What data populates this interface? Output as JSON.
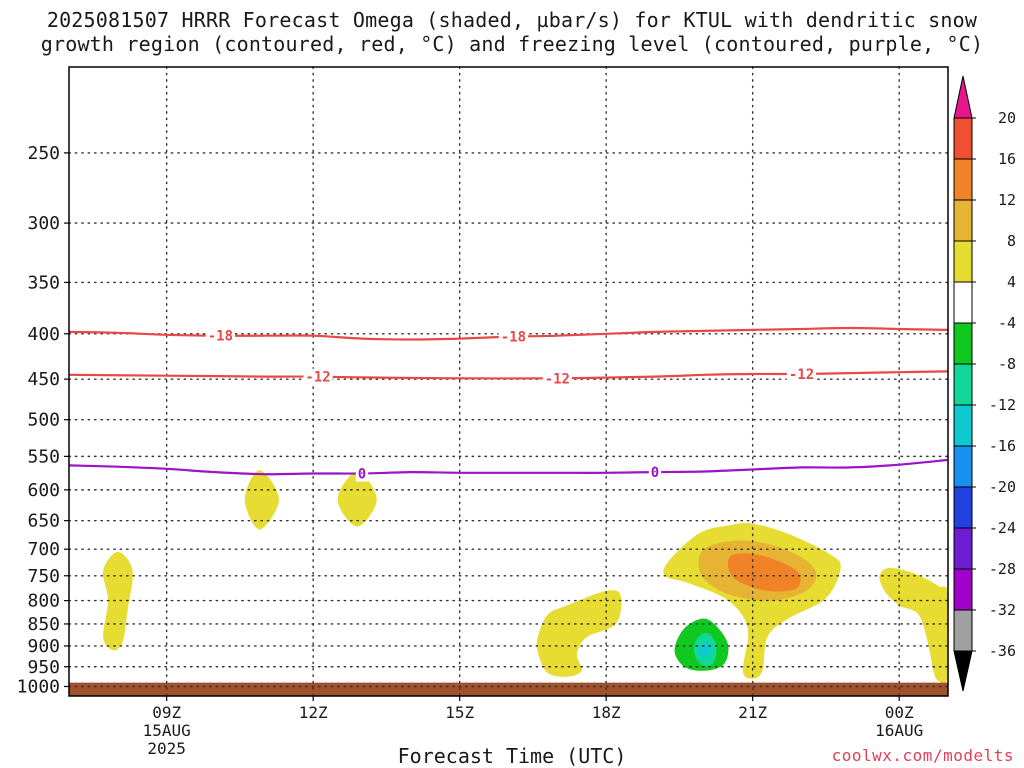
{
  "title_line1": "2025081507 HRRR Forecast Omega (shaded, µbar/s) for KTUL with dendritic snow",
  "title_line2": "growth region (contoured, red, °C) and freezing level (contoured, purple, °C)",
  "credit": "coolwx.com/modelts",
  "chart_data": {
    "type": "contour",
    "xlabel": "Forecast Time (UTC)",
    "ylabel": "",
    "x_range_hours": [
      7,
      25
    ],
    "y_range_hpa": [
      1025,
      200
    ],
    "y_scale": "log-pressure",
    "grid": "dotted",
    "x_ticks": [
      {
        "hour": 9,
        "lines": [
          "09Z",
          "15AUG",
          "2025"
        ]
      },
      {
        "hour": 12,
        "lines": [
          "12Z"
        ]
      },
      {
        "hour": 15,
        "lines": [
          "15Z"
        ]
      },
      {
        "hour": 18,
        "lines": [
          "18Z"
        ]
      },
      {
        "hour": 21,
        "lines": [
          "21Z"
        ]
      },
      {
        "hour": 24,
        "lines": [
          "00Z",
          "16AUG"
        ]
      }
    ],
    "y_ticks": [
      250,
      300,
      350,
      400,
      450,
      500,
      550,
      600,
      650,
      700,
      750,
      800,
      850,
      900,
      950,
      1000
    ],
    "colorbar": {
      "bins": [
        {
          "color": "#a0a0a0",
          "lo": -36,
          "hi": -32
        },
        {
          "color": "#a000c8",
          "lo": -32,
          "hi": -28
        },
        {
          "color": "#6e1ed2",
          "lo": -28,
          "hi": -24
        },
        {
          "color": "#2040e0",
          "lo": -24,
          "hi": -20
        },
        {
          "color": "#1890f0",
          "lo": -20,
          "hi": -16
        },
        {
          "color": "#10c8d0",
          "lo": -16,
          "hi": -12
        },
        {
          "color": "#10d898",
          "lo": -12,
          "hi": -8
        },
        {
          "color": "#10c820",
          "lo": -8,
          "hi": -4
        },
        {
          "color": "#ffffff",
          "lo": -4,
          "hi": 4
        },
        {
          "color": "#e6dc32",
          "lo": 4,
          "hi": 8
        },
        {
          "color": "#e6b432",
          "lo": 8,
          "hi": 12
        },
        {
          "color": "#f08228",
          "lo": 12,
          "hi": 16
        },
        {
          "color": "#f05032",
          "lo": 16,
          "hi": 20
        }
      ],
      "labels": [
        20,
        16,
        12,
        8,
        4,
        -4,
        -8,
        -12,
        -16,
        -20,
        -24,
        -28,
        -32,
        -36
      ],
      "top_arrow_color": "#e6168c",
      "bottom_arrow_color": "#000000"
    },
    "terrain": {
      "color": "#a0522d",
      "surface_hpa": 990
    },
    "contours": [
      {
        "name": "-18",
        "color": "#e84848",
        "labels": [
          {
            "x": 10.1,
            "text": "-18"
          },
          {
            "x": 16.1,
            "text": "-18"
          }
        ],
        "points": [
          [
            7,
            398
          ],
          [
            8,
            399
          ],
          [
            9,
            401
          ],
          [
            10,
            402
          ],
          [
            11,
            402
          ],
          [
            12,
            402
          ],
          [
            13,
            405
          ],
          [
            14,
            406
          ],
          [
            15,
            405
          ],
          [
            16,
            403
          ],
          [
            17,
            402
          ],
          [
            18,
            400
          ],
          [
            19,
            398
          ],
          [
            20,
            397
          ],
          [
            21,
            396
          ],
          [
            22,
            395
          ],
          [
            23,
            394
          ],
          [
            24,
            395
          ],
          [
            25,
            396
          ]
        ]
      },
      {
        "name": "-12",
        "color": "#e84848",
        "labels": [
          {
            "x": 12.1,
            "text": "-12"
          },
          {
            "x": 17.0,
            "text": "-12"
          },
          {
            "x": 22.0,
            "text": "-12"
          }
        ],
        "points": [
          [
            7,
            445
          ],
          [
            9,
            446
          ],
          [
            11,
            447
          ],
          [
            12,
            447
          ],
          [
            13,
            448
          ],
          [
            15,
            449
          ],
          [
            17,
            449
          ],
          [
            19,
            447
          ],
          [
            20,
            445
          ],
          [
            21,
            444
          ],
          [
            22,
            444
          ],
          [
            23,
            443
          ],
          [
            24,
            442
          ],
          [
            25,
            441
          ]
        ]
      },
      {
        "name": "0",
        "color": "#9a14c8",
        "labels": [
          {
            "x": 13.0,
            "text": "0"
          },
          {
            "x": 19.0,
            "text": "0"
          }
        ],
        "points": [
          [
            7,
            563
          ],
          [
            8,
            565
          ],
          [
            9,
            568
          ],
          [
            10,
            573
          ],
          [
            11,
            576
          ],
          [
            12,
            575
          ],
          [
            13,
            575
          ],
          [
            14,
            573
          ],
          [
            15,
            574
          ],
          [
            16,
            574
          ],
          [
            17,
            574
          ],
          [
            18,
            574
          ],
          [
            19,
            573
          ],
          [
            20,
            572
          ],
          [
            21,
            569
          ],
          [
            22,
            566
          ],
          [
            23,
            566
          ],
          [
            24,
            562
          ],
          [
            25,
            555
          ]
        ]
      }
    ],
    "shaded_regions": [
      {
        "color": "#e6dc32",
        "value_range": [
          4,
          8
        ],
        "points": [
          [
            8.0,
            705
          ],
          [
            8.3,
            740
          ],
          [
            8.2,
            820
          ],
          [
            8.1,
            890
          ],
          [
            7.9,
            910
          ],
          [
            7.7,
            880
          ],
          [
            7.8,
            800
          ],
          [
            7.7,
            740
          ]
        ]
      },
      {
        "color": "#e6dc32",
        "value_range": [
          4,
          8
        ],
        "points": [
          [
            10.9,
            570
          ],
          [
            11.3,
            615
          ],
          [
            10.9,
            665
          ],
          [
            10.6,
            615
          ]
        ]
      },
      {
        "color": "#e6dc32",
        "value_range": [
          4,
          8
        ],
        "points": [
          [
            12.9,
            572
          ],
          [
            13.3,
            615
          ],
          [
            12.9,
            660
          ],
          [
            12.5,
            615
          ]
        ]
      },
      {
        "color": "#e6dc32",
        "value_range": [
          4,
          8
        ],
        "points": [
          [
            18.0,
            780
          ],
          [
            18.3,
            790
          ],
          [
            18.2,
            850
          ],
          [
            17.6,
            880
          ],
          [
            17.4,
            920
          ],
          [
            17.5,
            960
          ],
          [
            17.2,
            975
          ],
          [
            16.8,
            965
          ],
          [
            16.6,
            915
          ],
          [
            16.6,
            880
          ],
          [
            16.8,
            830
          ],
          [
            17.2,
            810
          ]
        ]
      },
      {
        "color": "#e6dc32",
        "value_range": [
          4,
          8
        ],
        "points": [
          [
            21.0,
            655
          ],
          [
            21.8,
            675
          ],
          [
            22.6,
            710
          ],
          [
            22.8,
            735
          ],
          [
            22.5,
            795
          ],
          [
            21.7,
            840
          ],
          [
            21.3,
            880
          ],
          [
            21.2,
            960
          ],
          [
            21.0,
            980
          ],
          [
            20.8,
            960
          ],
          [
            20.9,
            860
          ],
          [
            20.5,
            800
          ],
          [
            19.7,
            765
          ],
          [
            19.2,
            750
          ],
          [
            19.3,
            720
          ],
          [
            19.9,
            672
          ],
          [
            20.5,
            658
          ]
        ]
      },
      {
        "color": "#e6b432",
        "value_range": [
          8,
          12
        ],
        "points": [
          [
            20.0,
            700
          ],
          [
            20.6,
            685
          ],
          [
            21.3,
            690
          ],
          [
            22.0,
            715
          ],
          [
            22.3,
            745
          ],
          [
            22.1,
            780
          ],
          [
            21.4,
            800
          ],
          [
            20.6,
            790
          ],
          [
            20.1,
            765
          ],
          [
            19.9,
            735
          ]
        ]
      },
      {
        "color": "#f08228",
        "value_range": [
          12,
          16
        ],
        "points": [
          [
            20.6,
            710
          ],
          [
            21.2,
            712
          ],
          [
            21.9,
            740
          ],
          [
            21.9,
            775
          ],
          [
            21.3,
            780
          ],
          [
            20.7,
            760
          ],
          [
            20.5,
            735
          ]
        ]
      },
      {
        "color": "#e6dc32",
        "value_range": [
          4,
          8
        ],
        "points": [
          [
            23.8,
            735
          ],
          [
            24.3,
            745
          ],
          [
            24.8,
            770
          ],
          [
            25,
            790
          ],
          [
            25,
            970
          ],
          [
            24.8,
            985
          ],
          [
            24.7,
            960
          ],
          [
            24.6,
            900
          ],
          [
            24.4,
            830
          ],
          [
            24.0,
            810
          ],
          [
            23.7,
            780
          ],
          [
            23.6,
            750
          ]
        ]
      },
      {
        "color": "#10c820",
        "value_range": [
          -8,
          -4
        ],
        "points": [
          [
            20.0,
            838
          ],
          [
            20.3,
            860
          ],
          [
            20.5,
            900
          ],
          [
            20.4,
            945
          ],
          [
            20.0,
            960
          ],
          [
            19.6,
            950
          ],
          [
            19.4,
            910
          ],
          [
            19.6,
            860
          ]
        ]
      },
      {
        "color": "#10d898",
        "value_range": [
          -12,
          -8
        ],
        "points": [
          [
            20.05,
            870
          ],
          [
            20.25,
            895
          ],
          [
            20.2,
            940
          ],
          [
            19.95,
            945
          ],
          [
            19.8,
            915
          ],
          [
            19.85,
            885
          ]
        ]
      },
      {
        "color": "#10c8d0",
        "value_range": [
          -16,
          -12
        ],
        "points": [
          [
            20.05,
            890
          ],
          [
            20.15,
            905
          ],
          [
            20.1,
            925
          ],
          [
            19.95,
            925
          ],
          [
            19.9,
            905
          ]
        ]
      }
    ]
  }
}
